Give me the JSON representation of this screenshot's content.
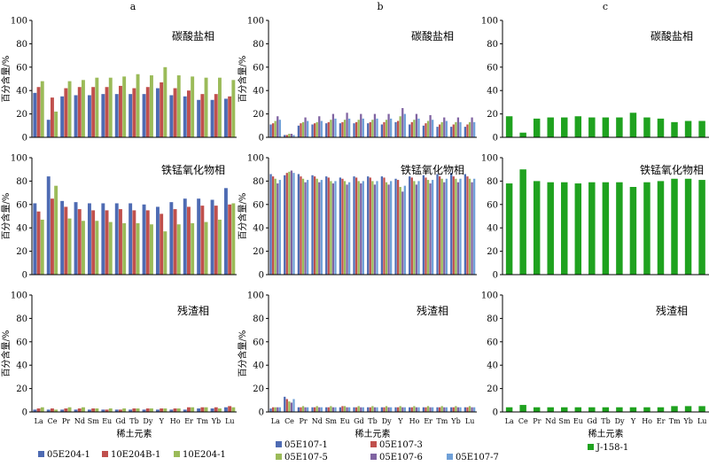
{
  "categories": [
    "La",
    "Ce",
    "Pr",
    "Nd",
    "Sm",
    "Eu",
    "Gd",
    "Tb",
    "Dy",
    "Y",
    "Ho",
    "Er",
    "Tm",
    "Yb",
    "Lu"
  ],
  "y_label": "百分含量/%",
  "x_label": "稀土元素",
  "y_ticks": [
    "0",
    "20",
    "40",
    "60",
    "80",
    "100"
  ],
  "columns": [
    {
      "id": "a",
      "label": "a"
    },
    {
      "id": "b",
      "label": "b"
    },
    {
      "id": "c",
      "label": "c"
    }
  ],
  "phases": [
    "碳酸盐相",
    "铁锰氧化物相",
    "残渣相"
  ],
  "legends": {
    "a": [
      {
        "name": "05E204-1",
        "color": "#4e6bb3"
      },
      {
        "name": "10E204B-1",
        "color": "#c0504d"
      },
      {
        "name": "10E204-1",
        "color": "#9bbb59"
      }
    ],
    "b": [
      {
        "name": "05E107-1",
        "color": "#4e6bb3"
      },
      {
        "name": "05E107-3",
        "color": "#c0504d"
      },
      {
        "name": "05E107-5",
        "color": "#9bbb59"
      },
      {
        "name": "05E107-6",
        "color": "#8064a2"
      },
      {
        "name": "05E107-7",
        "color": "#6fa0d8"
      }
    ],
    "c": [
      {
        "name": "J-158-1",
        "color": "#1fa21f"
      }
    ]
  },
  "chart_data": [
    {
      "type": "bar",
      "column": "a",
      "phase": "碳酸盐相",
      "ylim": [
        0,
        100
      ],
      "categories": [
        "La",
        "Ce",
        "Pr",
        "Nd",
        "Sm",
        "Eu",
        "Gd",
        "Tb",
        "Dy",
        "Y",
        "Ho",
        "Er",
        "Tm",
        "Yb",
        "Lu"
      ],
      "series": [
        {
          "name": "05E204-1",
          "values": [
            38,
            15,
            35,
            36,
            36,
            37,
            37,
            37,
            37,
            42,
            36,
            35,
            32,
            32,
            33
          ]
        },
        {
          "name": "10E204B-1",
          "values": [
            43,
            34,
            42,
            43,
            43,
            43,
            44,
            42,
            43,
            47,
            42,
            40,
            37,
            37,
            35
          ]
        },
        {
          "name": "10E204-1",
          "values": [
            48,
            22,
            48,
            49,
            51,
            51,
            52,
            54,
            53,
            60,
            53,
            52,
            51,
            51,
            49
          ]
        }
      ]
    },
    {
      "type": "bar",
      "column": "a",
      "phase": "铁锰氧化物相",
      "ylim": [
        0,
        100
      ],
      "categories": [
        "La",
        "Ce",
        "Pr",
        "Nd",
        "Sm",
        "Eu",
        "Gd",
        "Tb",
        "Dy",
        "Y",
        "Ho",
        "Er",
        "Tm",
        "Yb",
        "Lu"
      ],
      "series": [
        {
          "name": "05E204-1",
          "values": [
            61,
            84,
            63,
            62,
            61,
            61,
            61,
            61,
            60,
            58,
            62,
            65,
            65,
            64,
            74
          ]
        },
        {
          "name": "10E204B-1",
          "values": [
            54,
            65,
            58,
            56,
            55,
            55,
            56,
            55,
            55,
            52,
            56,
            58,
            59,
            59,
            60
          ]
        },
        {
          "name": "10E204-1",
          "values": [
            47,
            76,
            48,
            46,
            46,
            45,
            44,
            44,
            43,
            37,
            43,
            44,
            45,
            47,
            61
          ]
        }
      ]
    },
    {
      "type": "bar",
      "column": "a",
      "phase": "残渣相",
      "ylim": [
        0,
        100
      ],
      "categories": [
        "La",
        "Ce",
        "Pr",
        "Nd",
        "Sm",
        "Eu",
        "Gd",
        "Tb",
        "Dy",
        "Y",
        "Ho",
        "Er",
        "Tm",
        "Yb",
        "Lu"
      ],
      "series": [
        {
          "name": "05E204-1",
          "values": [
            2,
            2,
            2,
            2,
            2,
            2,
            2,
            2,
            2,
            2,
            2,
            2,
            3,
            3,
            4
          ]
        },
        {
          "name": "10E204B-1",
          "values": [
            3,
            3,
            3,
            3,
            3,
            2,
            2,
            3,
            3,
            3,
            3,
            4,
            4,
            4,
            5
          ]
        },
        {
          "name": "10E204-1",
          "values": [
            4,
            2,
            4,
            4,
            3,
            3,
            3,
            3,
            3,
            3,
            3,
            4,
            4,
            3,
            4
          ]
        }
      ]
    },
    {
      "type": "bar",
      "column": "b",
      "phase": "碳酸盐相",
      "ylim": [
        0,
        100
      ],
      "categories": [
        "La",
        "Ce",
        "Pr",
        "Nd",
        "Sm",
        "Eu",
        "Gd",
        "Tb",
        "Dy",
        "Y",
        "Ho",
        "Er",
        "Tm",
        "Yb",
        "Lu"
      ],
      "series": [
        {
          "name": "05E107-1",
          "values": [
            11,
            2,
            10,
            11,
            12,
            12,
            12,
            12,
            11,
            13,
            11,
            10,
            9,
            9,
            9
          ]
        },
        {
          "name": "05E107-3",
          "values": [
            12,
            2,
            12,
            12,
            13,
            13,
            13,
            13,
            13,
            14,
            13,
            12,
            11,
            11,
            11
          ]
        },
        {
          "name": "05E107-5",
          "values": [
            14,
            3,
            13,
            13,
            15,
            15,
            15,
            15,
            15,
            18,
            15,
            14,
            13,
            13,
            13
          ]
        },
        {
          "name": "05E107-6",
          "values": [
            18,
            3,
            17,
            18,
            20,
            21,
            20,
            20,
            20,
            25,
            20,
            19,
            17,
            17,
            17
          ]
        },
        {
          "name": "05E107-7",
          "values": [
            15,
            2,
            14,
            14,
            16,
            16,
            16,
            16,
            16,
            20,
            16,
            15,
            14,
            13,
            13
          ]
        }
      ]
    },
    {
      "type": "bar",
      "column": "b",
      "phase": "铁锰氧化物相",
      "ylim": [
        0,
        100
      ],
      "categories": [
        "La",
        "Ce",
        "Pr",
        "Nd",
        "Sm",
        "Eu",
        "Gd",
        "Tb",
        "Dy",
        "Y",
        "Ho",
        "Er",
        "Tm",
        "Yb",
        "Lu"
      ],
      "series": [
        {
          "name": "05E107-1",
          "values": [
            86,
            85,
            86,
            85,
            84,
            83,
            84,
            84,
            84,
            82,
            84,
            85,
            86,
            87,
            86
          ]
        },
        {
          "name": "05E107-3",
          "values": [
            84,
            87,
            84,
            84,
            83,
            82,
            83,
            83,
            83,
            81,
            83,
            83,
            84,
            84,
            84
          ]
        },
        {
          "name": "05E107-5",
          "values": [
            82,
            88,
            82,
            82,
            80,
            80,
            80,
            80,
            79,
            75,
            80,
            81,
            82,
            82,
            82
          ]
        },
        {
          "name": "05E107-6",
          "values": [
            78,
            89,
            79,
            79,
            78,
            77,
            78,
            77,
            77,
            71,
            77,
            78,
            79,
            79,
            79
          ]
        },
        {
          "name": "05E107-7",
          "values": [
            81,
            87,
            81,
            81,
            80,
            79,
            80,
            80,
            80,
            76,
            80,
            81,
            82,
            82,
            82
          ]
        }
      ]
    },
    {
      "type": "bar",
      "column": "b",
      "phase": "残渣相",
      "ylim": [
        0,
        100
      ],
      "categories": [
        "La",
        "Ce",
        "Pr",
        "Nd",
        "Sm",
        "Eu",
        "Gd",
        "Tb",
        "Dy",
        "Y",
        "Ho",
        "Er",
        "Tm",
        "Yb",
        "Lu"
      ],
      "series": [
        {
          "name": "05E107-1",
          "values": [
            3,
            13,
            4,
            4,
            4,
            4,
            4,
            4,
            4,
            4,
            4,
            4,
            4,
            4,
            4
          ]
        },
        {
          "name": "05E107-3",
          "values": [
            4,
            11,
            4,
            4,
            4,
            5,
            4,
            4,
            4,
            4,
            4,
            4,
            4,
            4,
            4
          ]
        },
        {
          "name": "05E107-5",
          "values": [
            4,
            9,
            5,
            5,
            5,
            5,
            5,
            5,
            5,
            5,
            5,
            5,
            5,
            5,
            5
          ]
        },
        {
          "name": "05E107-6",
          "values": [
            4,
            8,
            4,
            4,
            4,
            4,
            4,
            4,
            4,
            4,
            4,
            4,
            4,
            4,
            4
          ]
        },
        {
          "name": "05E107-7",
          "values": [
            4,
            11,
            4,
            4,
            4,
            4,
            4,
            4,
            4,
            4,
            4,
            4,
            4,
            4,
            4
          ]
        }
      ]
    },
    {
      "type": "bar",
      "column": "c",
      "phase": "碳酸盐相",
      "ylim": [
        0,
        100
      ],
      "categories": [
        "La",
        "Ce",
        "Pr",
        "Nd",
        "Sm",
        "Eu",
        "Gd",
        "Tb",
        "Dy",
        "Y",
        "Ho",
        "Er",
        "Tm",
        "Yb",
        "Lu"
      ],
      "series": [
        {
          "name": "J-158-1",
          "values": [
            18,
            4,
            16,
            17,
            17,
            18,
            17,
            17,
            17,
            21,
            17,
            16,
            13,
            14,
            14
          ]
        }
      ]
    },
    {
      "type": "bar",
      "column": "c",
      "phase": "铁锰氧化物相",
      "ylim": [
        0,
        100
      ],
      "categories": [
        "La",
        "Ce",
        "Pr",
        "Nd",
        "Sm",
        "Eu",
        "Gd",
        "Tb",
        "Dy",
        "Y",
        "Ho",
        "Er",
        "Tm",
        "Yb",
        "Lu"
      ],
      "series": [
        {
          "name": "J-158-1",
          "values": [
            78,
            90,
            80,
            79,
            79,
            78,
            79,
            79,
            79,
            75,
            79,
            80,
            82,
            82,
            81
          ]
        }
      ]
    },
    {
      "type": "bar",
      "column": "c",
      "phase": "残渣相",
      "ylim": [
        0,
        100
      ],
      "categories": [
        "La",
        "Ce",
        "Pr",
        "Nd",
        "Sm",
        "Eu",
        "Gd",
        "Tb",
        "Dy",
        "Y",
        "Ho",
        "Er",
        "Tm",
        "Yb",
        "Lu"
      ],
      "series": [
        {
          "name": "J-158-1",
          "values": [
            4,
            6,
            4,
            4,
            4,
            4,
            4,
            4,
            4,
            4,
            4,
            4,
            5,
            5,
            5
          ]
        }
      ]
    }
  ]
}
